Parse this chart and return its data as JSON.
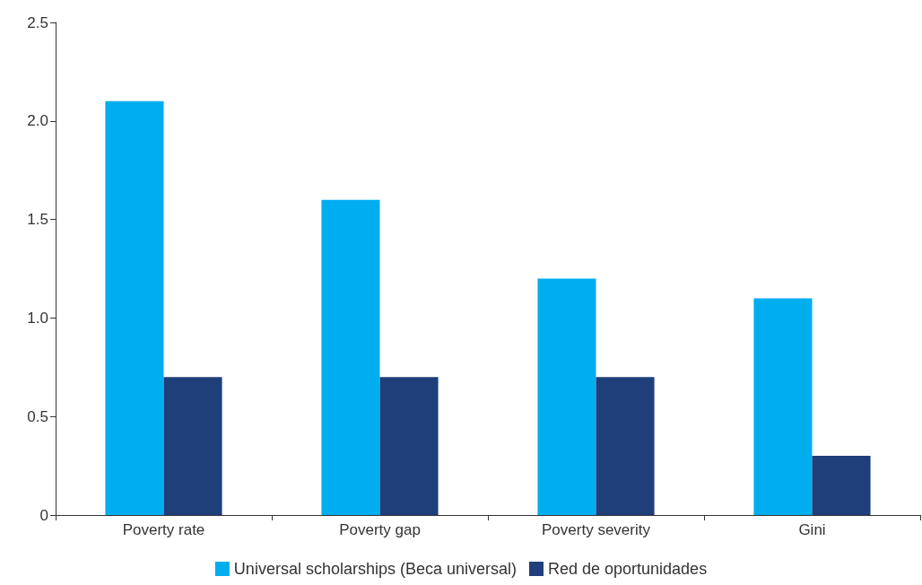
{
  "chart_data": {
    "type": "bar",
    "categories": [
      "Poverty rate",
      "Poverty gap",
      "Poverty severity",
      "Gini"
    ],
    "series": [
      {
        "name": "Universal scholarships (Beca universal)",
        "color": "#00adef",
        "values": [
          2.1,
          1.6,
          1.2,
          1.1
        ]
      },
      {
        "name": "Red de oportunidades",
        "color": "#1f3f7a",
        "values": [
          0.7,
          0.7,
          0.7,
          0.3
        ]
      }
    ],
    "ylim": [
      0,
      2.5
    ],
    "yticks": [
      0,
      0.5,
      {
        "value": 1,
        "label": "1.0"
      },
      1.5,
      {
        "value": 2,
        "label": "2.0"
      },
      2.5
    ],
    "grid": false,
    "legend": "bottom"
  }
}
